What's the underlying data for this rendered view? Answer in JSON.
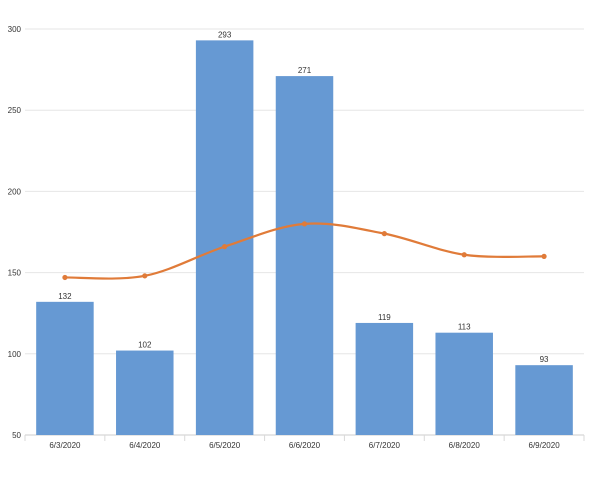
{
  "chart_data": {
    "type": "bar",
    "categories": [
      "6/3/2020",
      "6/4/2020",
      "6/5/2020",
      "6/6/2020",
      "6/7/2020",
      "6/8/2020",
      "6/9/2020"
    ],
    "series": [
      {
        "type": "bar",
        "values": [
          132,
          102,
          293,
          271,
          119,
          113,
          93
        ],
        "color": "#6699d3",
        "data_labels": true
      },
      {
        "type": "line",
        "smooth": true,
        "values": [
          147,
          148,
          166,
          180,
          174,
          161,
          160
        ],
        "color": "#e07b39",
        "data_labels": false
      }
    ],
    "y_ticks": [
      50,
      100,
      150,
      200,
      250,
      300
    ],
    "ylim": [
      50,
      300
    ],
    "grid": true,
    "title": "",
    "xlabel": "",
    "ylabel": ""
  }
}
